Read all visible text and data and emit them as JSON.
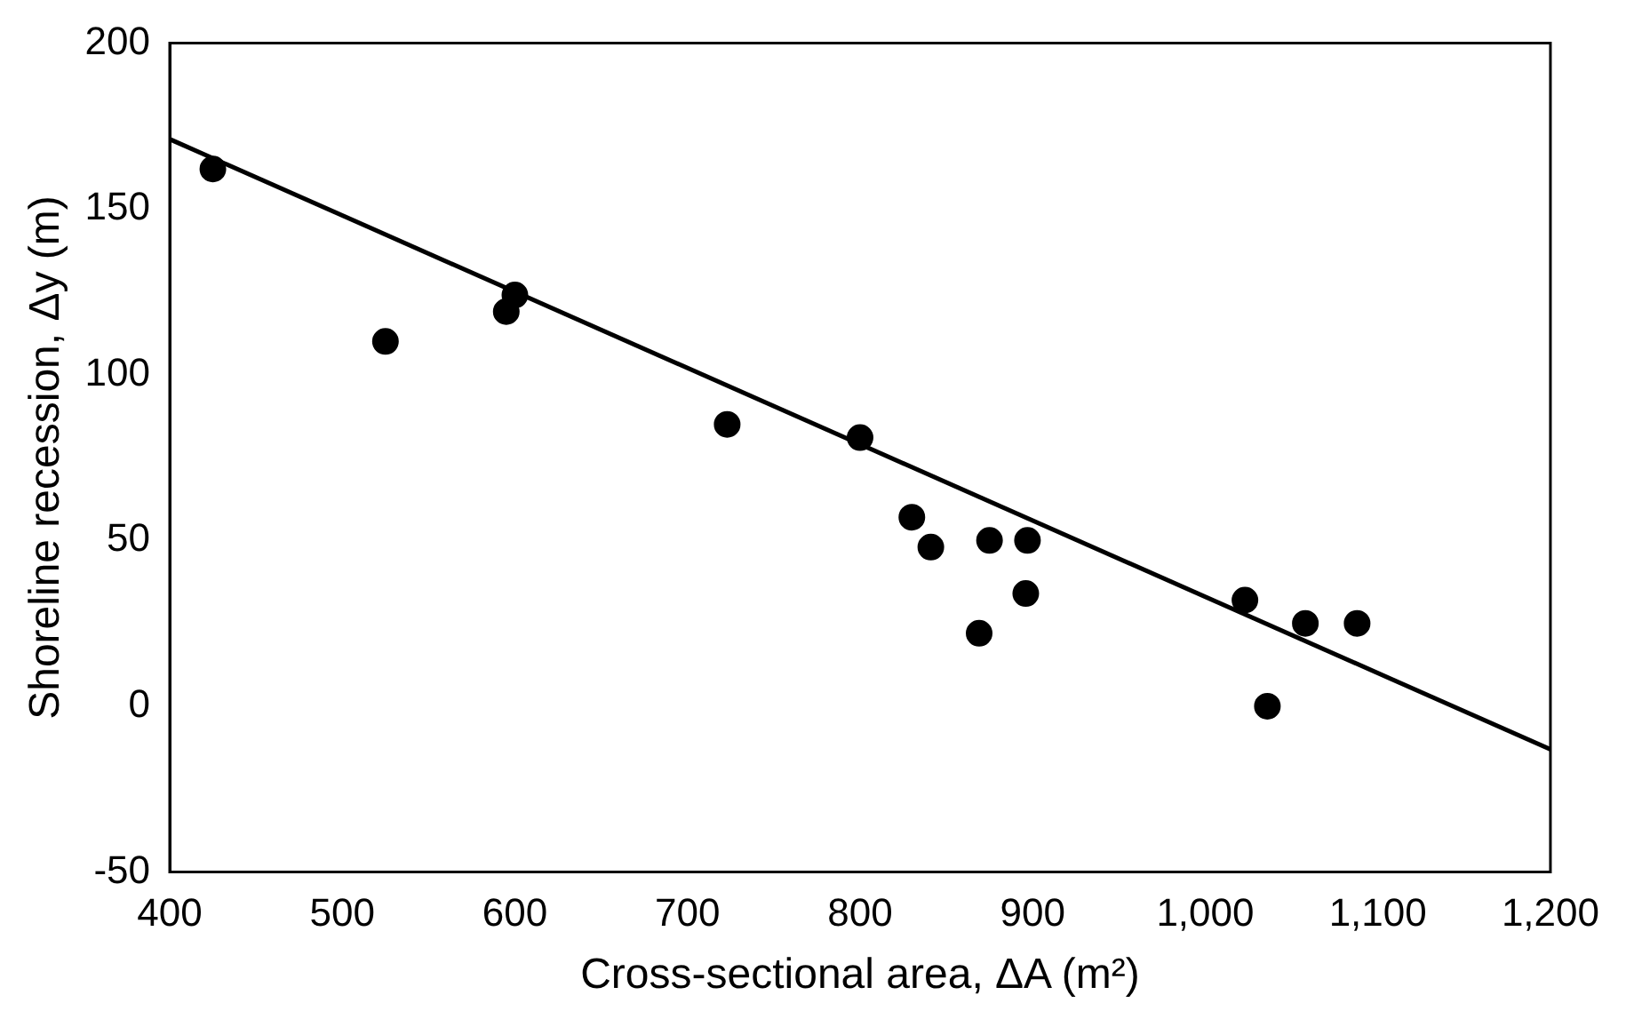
{
  "chart_data": {
    "type": "scatter",
    "xlabel": "Cross-sectional area, ΔA (m²)",
    "ylabel": "Shoreline recession, Δy (m)",
    "xlim": [
      400,
      1200
    ],
    "xticks": [
      400,
      500,
      600,
      700,
      800,
      900,
      {
        "value": 1000,
        "label": "1,000"
      },
      {
        "value": 1100,
        "label": "1,100"
      },
      {
        "value": 1200,
        "label": "1,200"
      }
    ],
    "ylim": [
      -50,
      200
    ],
    "yticks": [
      -50,
      0,
      50,
      100,
      150,
      200
    ],
    "grid": false,
    "legend": false,
    "marker": "circle",
    "series": [
      {
        "type": "scatter",
        "color": "#000000",
        "x": [
          425,
          525,
          595,
          600,
          723,
          800,
          830,
          841,
          869,
          875,
          897,
          896,
          1023,
          1036,
          1058,
          1088
        ],
        "values": [
          162,
          110,
          119,
          124,
          85,
          81,
          57,
          48,
          22,
          50,
          50,
          34,
          32,
          0,
          25,
          25
        ]
      },
      {
        "type": "line",
        "color": "#000000",
        "line_style": "solid",
        "marker": "none",
        "x": [
          400,
          1200
        ],
        "values": [
          171,
          -13
        ]
      }
    ]
  }
}
